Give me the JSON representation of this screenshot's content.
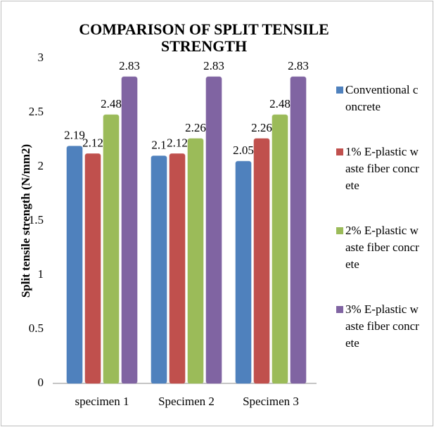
{
  "chart_data": {
    "type": "bar",
    "title": "COMPARISON OF SPLIT TENSILE STRENGTH",
    "ylabel": "Split tensile strength (N/mm2)",
    "categories": [
      "specimen 1",
      "Specimen 2",
      "Specimen 3"
    ],
    "series": [
      {
        "name": "Conventional concrete",
        "color": "#4f81bd",
        "values": [
          2.19,
          2.1,
          2.05
        ]
      },
      {
        "name": "1% E-plastic waste fiber concrete",
        "color": "#c0504d",
        "values": [
          2.12,
          2.12,
          2.26
        ]
      },
      {
        "name": "2% E-plastic waste fiber concrete",
        "color": "#9bbb59",
        "values": [
          2.48,
          2.26,
          2.48
        ]
      },
      {
        "name": "3% E-plastic waste fiber concrete",
        "color": "#8064a2",
        "values": [
          2.83,
          2.83,
          2.83
        ]
      }
    ],
    "ylim": [
      0,
      3
    ],
    "yticks": [
      0,
      0.5,
      1,
      1.5,
      2,
      2.5,
      3
    ],
    "grid": false,
    "legend": "right"
  }
}
